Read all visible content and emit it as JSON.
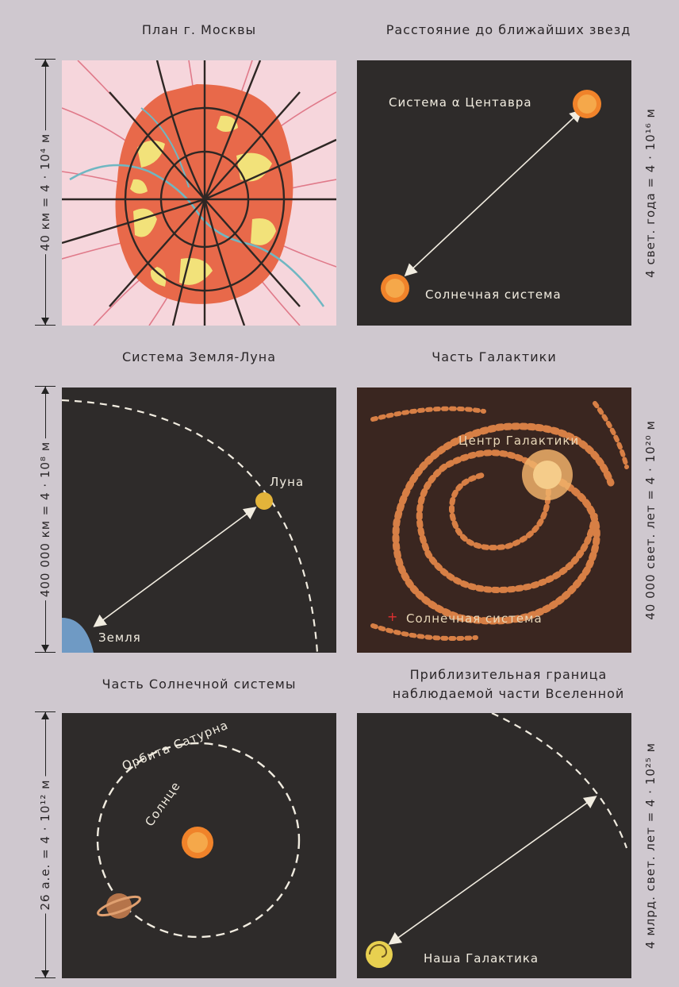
{
  "panels": {
    "moscow": {
      "title": "План г. Москвы",
      "scale": "40 км = 4 · 10⁴ м"
    },
    "stars": {
      "title": "Расстояние до ближайших звезд",
      "scale": "4 свет. года = 4 · 10¹⁶ м",
      "alpha_label": "Система α Центавра",
      "sun_label": "Солнечная система"
    },
    "earth_moon": {
      "title": "Система Земля-Луна",
      "scale": "400 000 км = 4 · 10⁸ м",
      "moon_label": "Луна",
      "earth_label": "Земля"
    },
    "galaxy": {
      "title": "Часть Галактики",
      "scale": "40 000 свет. лет = 4 · 10²⁰ м",
      "center_label": "Центр Галактики",
      "sun_label": "Солнечная система"
    },
    "solar": {
      "title": "Часть Солнечной системы",
      "scale": "26 а.е. = 4 · 10¹² м",
      "orbit_label": "Орбита Сатурна",
      "sun_label": "Солнце"
    },
    "universe": {
      "title_line1": "Приблизительная граница",
      "title_line2": "наблюдаемой части Вселенной",
      "scale": "4 млрд. свет. лет = 4 · 10²⁵ м",
      "galaxy_label": "Наша Галактика"
    }
  },
  "colors": {
    "background": "#cfc8cf",
    "panel": "#2e2b2a",
    "star": "#f08a2a",
    "city": "#e8694a"
  }
}
